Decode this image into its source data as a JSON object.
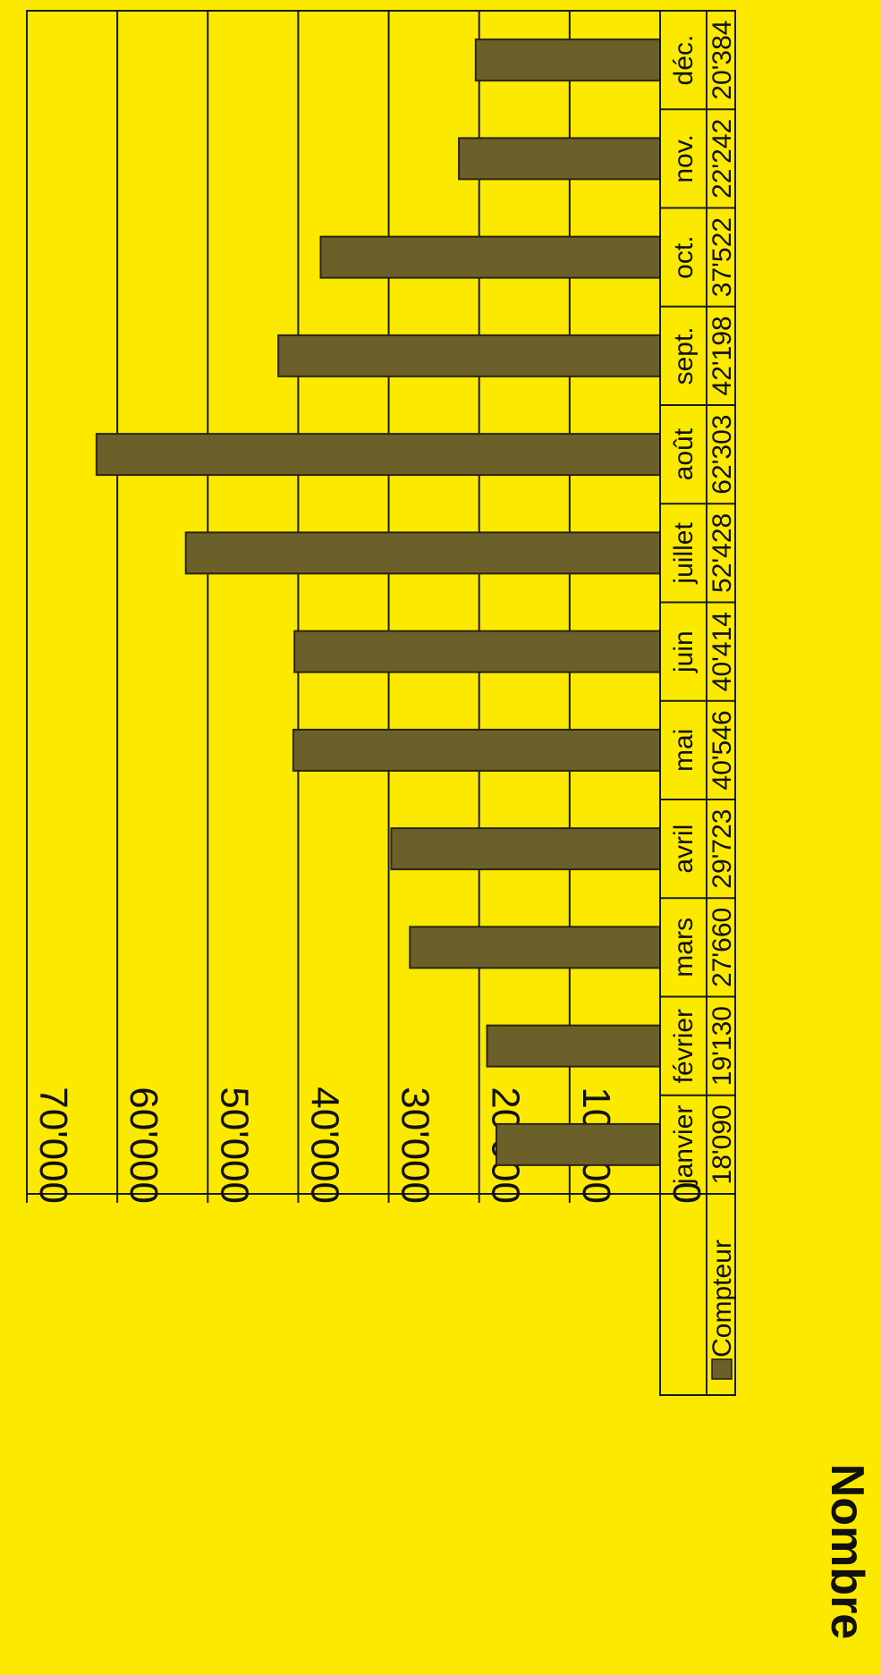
{
  "chart_data": {
    "type": "bar",
    "orientation": "rotated-90-clockwise",
    "title": "",
    "ylabel": "Nombre",
    "xlabel": "",
    "ylim": [
      0,
      70000
    ],
    "yticks": [
      "0",
      "10'000",
      "20'000",
      "30'000",
      "40'000",
      "50'000",
      "60'000",
      "70'000"
    ],
    "categories": [
      "janvier",
      "février",
      "mars",
      "avril",
      "mai",
      "juin",
      "juillet",
      "août",
      "sept.",
      "oct.",
      "nov.",
      "déc."
    ],
    "series": [
      {
        "name": "Compteur",
        "values": [
          18090,
          19130,
          27660,
          29723,
          40546,
          40414,
          52428,
          62303,
          42198,
          37522,
          22242,
          20384
        ],
        "labels": [
          "18'090",
          "19'130",
          "27'660",
          "29'723",
          "40'546",
          "40'414",
          "52'428",
          "62'303",
          "42'198",
          "37'522",
          "22'242",
          "20'384"
        ]
      }
    ],
    "grid": true,
    "legend": "data-table",
    "colors": {
      "background": "#fbea00",
      "bar": "#6b5f2a",
      "line": "#1a1a1a"
    }
  }
}
